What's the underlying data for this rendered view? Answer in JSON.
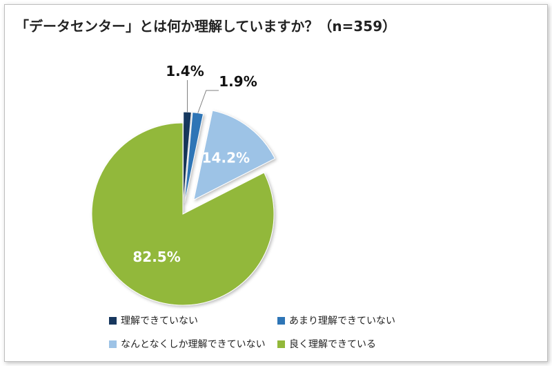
{
  "title": "「データセンター」とは何か理解していますか？（n=359）",
  "chart_data": {
    "type": "pie",
    "title": "「データセンター」とは何か理解していますか？（n=359）",
    "n": 359,
    "slices": [
      {
        "name": "理解できていない",
        "value": 1.4,
        "label": "1.4%",
        "color": "#17375e",
        "exploded": true
      },
      {
        "name": "あまり理解できていない",
        "value": 1.9,
        "label": "1.9%",
        "color": "#2e75b6",
        "exploded": true
      },
      {
        "name": "なんとなくしか理解できていない",
        "value": 14.2,
        "label": "14.2%",
        "color": "#9dc3e6",
        "exploded": true
      },
      {
        "name": "良く理解できている",
        "value": 82.5,
        "label": "82.5%",
        "color": "#92b83a",
        "exploded": false
      }
    ],
    "legend_position": "bottom",
    "start_angle_deg": 0,
    "direction": "clockwise"
  }
}
